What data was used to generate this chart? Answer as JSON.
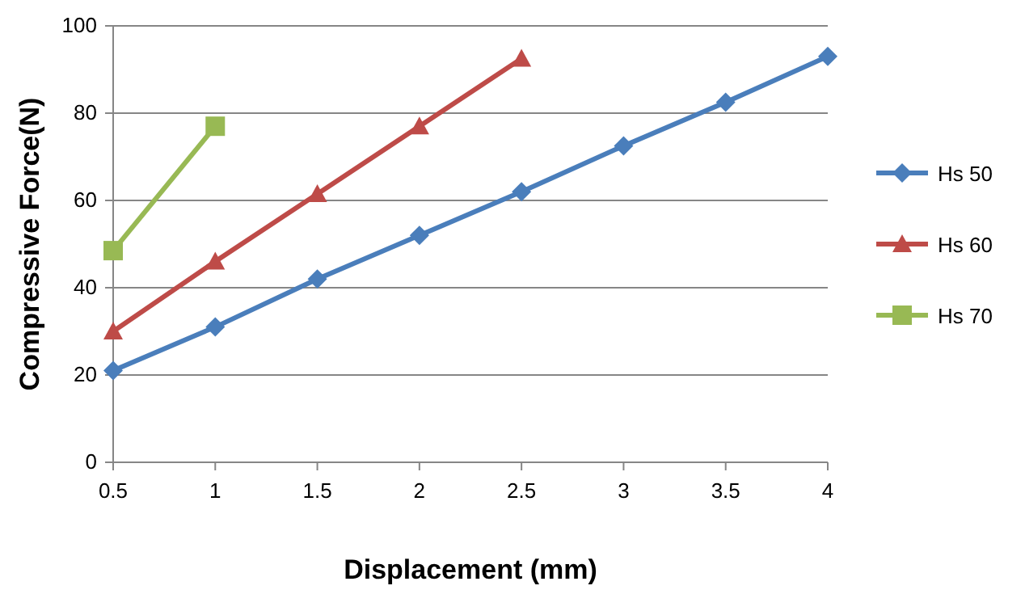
{
  "chart_data": {
    "type": "line",
    "xlabel": "Displacement (mm)",
    "ylabel": "Compressive Force(N)",
    "xlim": [
      0.5,
      4
    ],
    "xticks": [
      0.5,
      1,
      1.5,
      2,
      2.5,
      3,
      3.5,
      4
    ],
    "ylim": [
      0,
      100
    ],
    "yticks": [
      0,
      20,
      40,
      60,
      80,
      100
    ],
    "grid": "y",
    "legend": "right",
    "series": [
      {
        "name": "Hs 50",
        "color": "#4a7ebb",
        "marker": "diamond",
        "x": [
          0.5,
          1,
          1.5,
          2,
          2.5,
          3,
          3.5,
          4
        ],
        "values": [
          21,
          31,
          42,
          52,
          62,
          72.5,
          82.5,
          93
        ]
      },
      {
        "name": "Hs 60",
        "color": "#be4b48",
        "marker": "triangle",
        "x": [
          0.5,
          1,
          1.5,
          2,
          2.5
        ],
        "values": [
          30,
          46,
          61.5,
          77,
          92.5
        ]
      },
      {
        "name": "Hs 70",
        "color": "#98b954",
        "marker": "square",
        "x": [
          0.5,
          1
        ],
        "values": [
          48.5,
          77
        ]
      }
    ]
  }
}
